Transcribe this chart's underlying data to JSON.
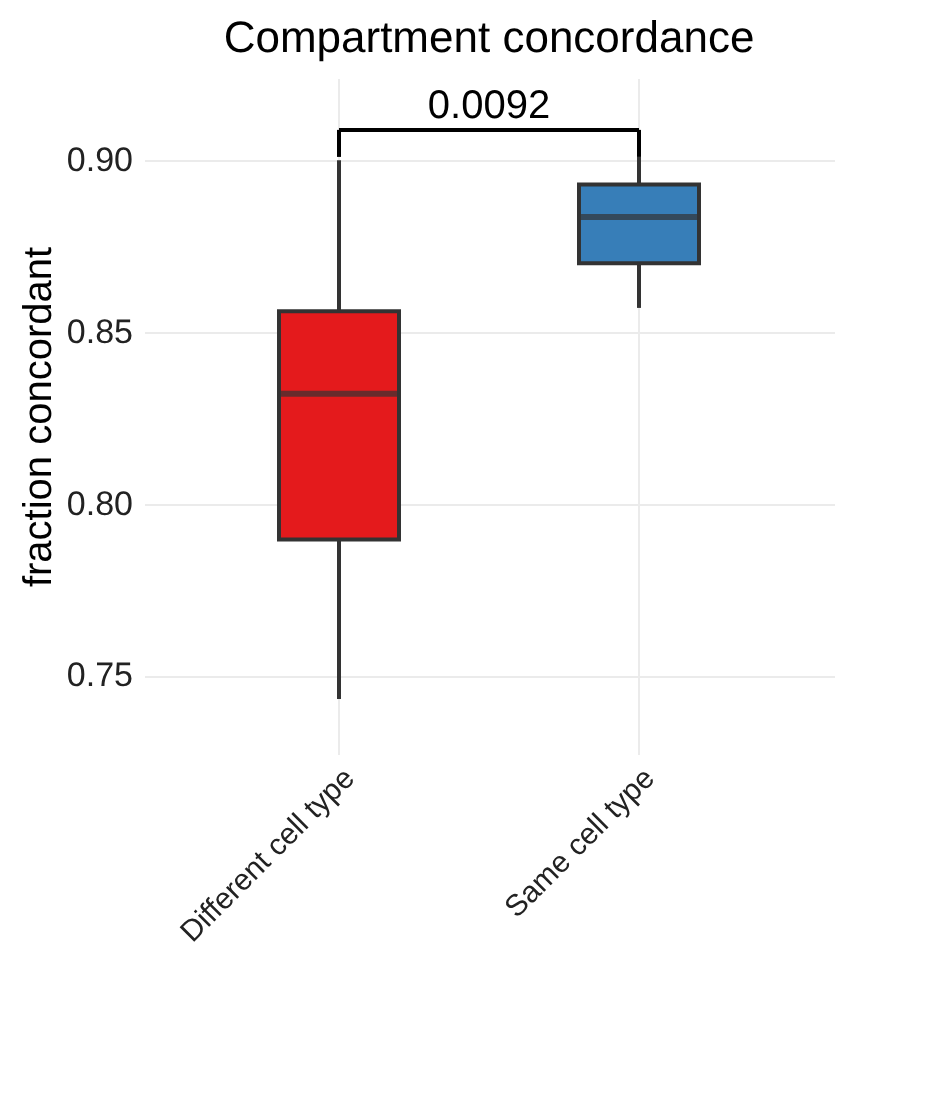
{
  "chart_data": {
    "type": "box",
    "title": "Compartment concordance",
    "ylabel": "fraction concordant",
    "categories": [
      "Different cell type",
      "Same cell type"
    ],
    "colors": [
      "#e41a1c",
      "#377eb8"
    ],
    "boxes": [
      {
        "low": 0.743,
        "q1": 0.7895,
        "median": 0.832,
        "q3": 0.856,
        "high": 0.9
      },
      {
        "low": 0.857,
        "q1": 0.87,
        "median": 0.8835,
        "q3": 0.893,
        "high": 0.901
      }
    ],
    "ylim": [
      0.727,
      0.924
    ],
    "yticks": [
      {
        "value": 0.75,
        "label": "0.75"
      },
      {
        "value": 0.8,
        "label": "0.80"
      },
      {
        "value": 0.85,
        "label": "0.85"
      },
      {
        "value": 0.9,
        "label": "0.90"
      }
    ],
    "grid": true,
    "annotations": [
      "0.0092"
    ]
  }
}
